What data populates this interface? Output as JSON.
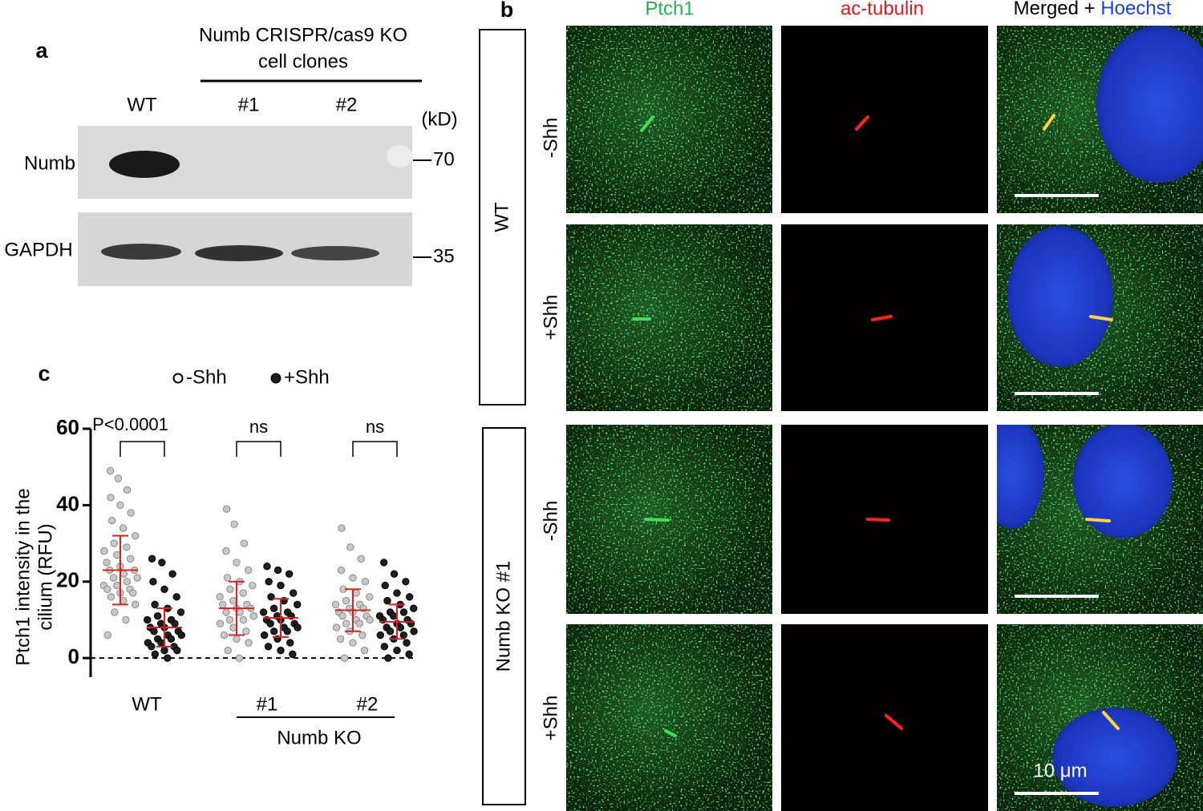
{
  "panel_a": {
    "label": "a",
    "header": [
      "Numb CRISPR/cas9 KO",
      "cell clones"
    ],
    "lanes": [
      "WT",
      "#1",
      "#2"
    ],
    "unit": "(kD)",
    "blots": [
      {
        "label": "Numb",
        "marker": 70
      },
      {
        "label": "GAPDH",
        "marker": 35
      }
    ]
  },
  "panel_b": {
    "label": "b",
    "columns": [
      "Ptch1",
      "ac-tubulin",
      "Merged +",
      "Hoechst"
    ],
    "groups": [
      {
        "label": "WT",
        "rows": [
          "-Shh",
          "+Shh"
        ]
      },
      {
        "label": "Numb KO #1",
        "rows": [
          "-Shh",
          "+Shh"
        ]
      }
    ],
    "scale_bar": "10 μm"
  },
  "chart_data": {
    "type": "dot_plot",
    "label": "c",
    "ylabel": [
      "Ptch1 intensity in the",
      "cilium (RFU)"
    ],
    "categories": [
      "WT",
      "#1",
      "#2"
    ],
    "group_label": "Numb KO",
    "ylim": [
      -5,
      60
    ],
    "yticks": [
      0,
      20,
      40,
      60
    ],
    "comparisons": [
      "P<0.0001",
      "ns",
      "ns"
    ],
    "series": [
      {
        "name": "-Shh",
        "color": "#c8c8c8",
        "mean": [
          23,
          13,
          12.5
        ],
        "sd": [
          9,
          7,
          5.5
        ],
        "points": [
          [
            49,
            47,
            44,
            42,
            40,
            38,
            36,
            34,
            32,
            30,
            29,
            28,
            27,
            26,
            25,
            24,
            23,
            23,
            22,
            21,
            21,
            20,
            19,
            19,
            18,
            18,
            17,
            17,
            16,
            15,
            14,
            12,
            10,
            6
          ],
          [
            39,
            35,
            30,
            28,
            25,
            23,
            21,
            20,
            19,
            18,
            17,
            16,
            15,
            14,
            14,
            13,
            13,
            12,
            12,
            11,
            10,
            10,
            9,
            8,
            7,
            6,
            5,
            4,
            2,
            0
          ],
          [
            34,
            29,
            26,
            23,
            21,
            20,
            18,
            17,
            16,
            15,
            14,
            14,
            13,
            13,
            12,
            12,
            11,
            11,
            10,
            10,
            9,
            9,
            8,
            7,
            6,
            5,
            4,
            2,
            0
          ]
        ]
      },
      {
        "name": "+Shh",
        "color": "#1e1e1e",
        "mean": [
          8,
          10.5,
          9.5
        ],
        "sd": [
          5,
          5,
          4.5
        ],
        "points": [
          [
            26,
            25,
            22,
            20,
            18,
            16,
            14,
            13,
            12,
            11,
            10,
            10,
            9,
            9,
            8,
            8,
            7,
            7,
            6,
            6,
            5,
            5,
            4,
            4,
            3,
            3,
            2,
            2,
            1,
            0
          ],
          [
            24,
            23,
            22,
            20,
            19,
            17,
            16,
            15,
            14,
            13,
            12,
            12,
            11,
            11,
            10,
            10,
            9,
            9,
            8,
            8,
            7,
            7,
            6,
            5,
            4,
            3,
            2,
            1
          ],
          [
            25,
            22,
            20,
            19,
            17,
            16,
            15,
            14,
            13,
            12,
            12,
            11,
            11,
            10,
            10,
            9,
            9,
            8,
            8,
            7,
            7,
            6,
            6,
            5,
            4,
            3,
            2,
            1,
            0
          ]
        ]
      }
    ]
  }
}
